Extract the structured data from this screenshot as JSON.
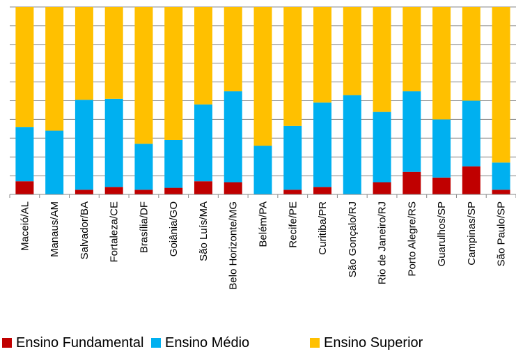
{
  "chart_data": {
    "type": "bar",
    "stacked": true,
    "normalized": true,
    "grid": true,
    "legend_position": "bottom",
    "categories": [
      "Maceió/AL",
      "Manaus/AM",
      "Salvador/BA",
      "Fortaleza/CE",
      "Brasília/DF",
      "Goiânia/GO",
      "São Luís/MA",
      "Belo Horizonte/MG",
      "Belém/PA",
      "Recife/PE",
      "Curitiba/PR",
      "São Gonçalo/RJ",
      "Rio de Janeiro/RJ",
      "Porto Alegre/RS",
      "Guarulhos/SP",
      "Campinas/SP",
      "São Paulo/SP"
    ],
    "series": [
      {
        "name": "Ensino Fundamental",
        "color": "#C00000",
        "values": [
          7,
          0,
          2.5,
          4,
          2.5,
          3.5,
          7,
          6.5,
          0,
          2.5,
          4,
          0,
          6.5,
          12,
          9,
          15,
          2.5
        ]
      },
      {
        "name": "Ensino Médio",
        "color": "#00B0F0",
        "values": [
          29,
          34,
          48,
          47,
          24.5,
          25.5,
          41,
          48.5,
          26,
          34,
          45,
          53,
          37.5,
          43,
          31,
          35,
          14.5
        ]
      },
      {
        "name": "Ensino Superior",
        "color": "#FFC000",
        "values": [
          64,
          66,
          49.5,
          49,
          73,
          71,
          52,
          45,
          74,
          63.5,
          51,
          47,
          56,
          45,
          60,
          50,
          83
        ]
      }
    ],
    "ylim": [
      0,
      100
    ]
  }
}
